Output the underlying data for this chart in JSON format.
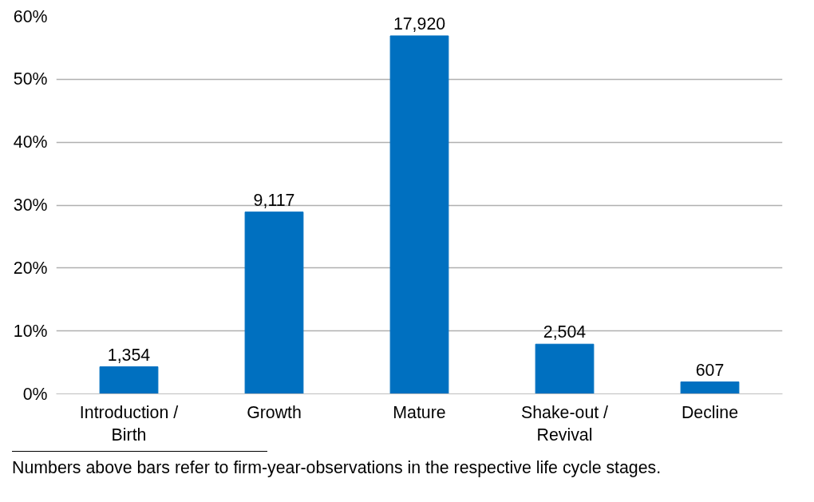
{
  "chart_data": {
    "type": "bar",
    "categories": [
      "Introduction / Birth",
      "Growth",
      "Mature",
      "Shake-out / Revival",
      "Decline"
    ],
    "values": [
      4.3,
      28.9,
      56.9,
      7.9,
      1.9
    ],
    "color": "#0070c0",
    "ylim": [
      0,
      60
    ],
    "yticks": [
      {
        "value": 0,
        "label": "0%"
      },
      {
        "value": 10,
        "label": "10%"
      },
      {
        "value": 20,
        "label": "20%"
      },
      {
        "value": 30,
        "label": "30%"
      },
      {
        "value": 40,
        "label": "40%"
      },
      {
        "value": 50,
        "label": "50%"
      },
      {
        "value": 60,
        "label": "60%"
      }
    ],
    "grid": "y",
    "annotations": [
      {
        "text": "1,354",
        "x": "Introduction / Birth",
        "y": 4.3
      },
      {
        "text": "9,117",
        "x": "Growth",
        "y": 28.9
      },
      {
        "text": "17,920",
        "x": "Mature",
        "y": 56.9
      },
      {
        "text": "2,504",
        "x": "Shake-out / Revival",
        "y": 7.9
      },
      {
        "text": "607",
        "x": "Decline",
        "y": 1.9
      },
      "Numbers  above bars refer to firm-year-observations in the respective life cycle stages."
    ]
  }
}
